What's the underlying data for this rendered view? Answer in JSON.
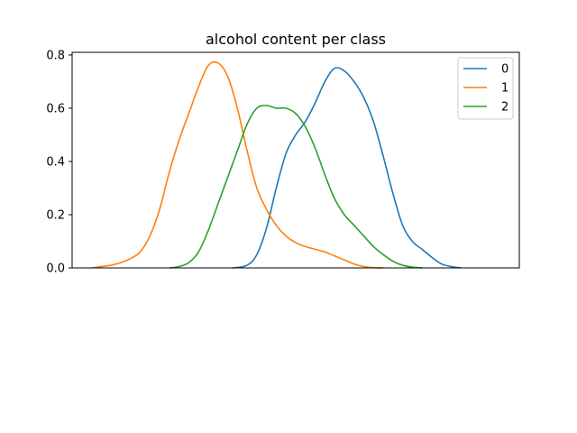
{
  "chart_data": {
    "type": "line",
    "title": "alcohol content per class",
    "xlabel": "",
    "ylabel": "",
    "x_ticks_shown": false,
    "ylim": [
      0,
      0.81
    ],
    "yticks": [
      0.0,
      0.2,
      0.4,
      0.6,
      0.8
    ],
    "ytick_labels": [
      "0.0",
      "0.2",
      "0.4",
      "0.6",
      "0.8"
    ],
    "xlim": [
      10.6,
      15.2
    ],
    "grid": false,
    "legend_position": "upper-right",
    "series": [
      {
        "name": "0",
        "color": "#1f77b4",
        "points": [
          [
            12.25,
            0.0
          ],
          [
            12.4,
            0.01
          ],
          [
            12.5,
            0.05
          ],
          [
            12.6,
            0.15
          ],
          [
            12.7,
            0.3
          ],
          [
            12.8,
            0.43
          ],
          [
            12.9,
            0.5
          ],
          [
            13.0,
            0.55
          ],
          [
            13.1,
            0.62
          ],
          [
            13.2,
            0.7
          ],
          [
            13.3,
            0.75
          ],
          [
            13.4,
            0.74
          ],
          [
            13.5,
            0.7
          ],
          [
            13.6,
            0.64
          ],
          [
            13.7,
            0.55
          ],
          [
            13.8,
            0.42
          ],
          [
            13.9,
            0.28
          ],
          [
            14.0,
            0.16
          ],
          [
            14.1,
            0.1
          ],
          [
            14.2,
            0.07
          ],
          [
            14.3,
            0.04
          ],
          [
            14.4,
            0.015
          ],
          [
            14.5,
            0.005
          ],
          [
            14.6,
            0.0
          ]
        ]
      },
      {
        "name": "1",
        "color": "#ff7f0e",
        "points": [
          [
            10.8,
            0.0
          ],
          [
            10.9,
            0.005
          ],
          [
            11.0,
            0.01
          ],
          [
            11.1,
            0.02
          ],
          [
            11.2,
            0.035
          ],
          [
            11.3,
            0.06
          ],
          [
            11.4,
            0.12
          ],
          [
            11.5,
            0.22
          ],
          [
            11.6,
            0.36
          ],
          [
            11.7,
            0.48
          ],
          [
            11.8,
            0.58
          ],
          [
            11.9,
            0.68
          ],
          [
            12.0,
            0.76
          ],
          [
            12.1,
            0.77
          ],
          [
            12.2,
            0.72
          ],
          [
            12.3,
            0.6
          ],
          [
            12.4,
            0.44
          ],
          [
            12.5,
            0.3
          ],
          [
            12.6,
            0.22
          ],
          [
            12.7,
            0.16
          ],
          [
            12.8,
            0.12
          ],
          [
            12.9,
            0.095
          ],
          [
            13.0,
            0.08
          ],
          [
            13.1,
            0.07
          ],
          [
            13.2,
            0.06
          ],
          [
            13.3,
            0.045
          ],
          [
            13.4,
            0.03
          ],
          [
            13.5,
            0.015
          ],
          [
            13.6,
            0.005
          ],
          [
            13.7,
            0.001
          ],
          [
            13.8,
            0.0
          ]
        ]
      },
      {
        "name": "2",
        "color": "#2ca02c",
        "points": [
          [
            11.6,
            0.0
          ],
          [
            11.7,
            0.005
          ],
          [
            11.8,
            0.02
          ],
          [
            11.9,
            0.06
          ],
          [
            12.0,
            0.14
          ],
          [
            12.1,
            0.24
          ],
          [
            12.2,
            0.34
          ],
          [
            12.3,
            0.44
          ],
          [
            12.4,
            0.54
          ],
          [
            12.5,
            0.6
          ],
          [
            12.6,
            0.61
          ],
          [
            12.7,
            0.6
          ],
          [
            12.8,
            0.6
          ],
          [
            12.9,
            0.58
          ],
          [
            13.0,
            0.53
          ],
          [
            13.1,
            0.45
          ],
          [
            13.2,
            0.35
          ],
          [
            13.3,
            0.26
          ],
          [
            13.4,
            0.2
          ],
          [
            13.5,
            0.16
          ],
          [
            13.6,
            0.12
          ],
          [
            13.7,
            0.08
          ],
          [
            13.8,
            0.05
          ],
          [
            13.9,
            0.025
          ],
          [
            14.0,
            0.01
          ],
          [
            14.1,
            0.003
          ],
          [
            14.2,
            0.0
          ]
        ]
      }
    ]
  }
}
